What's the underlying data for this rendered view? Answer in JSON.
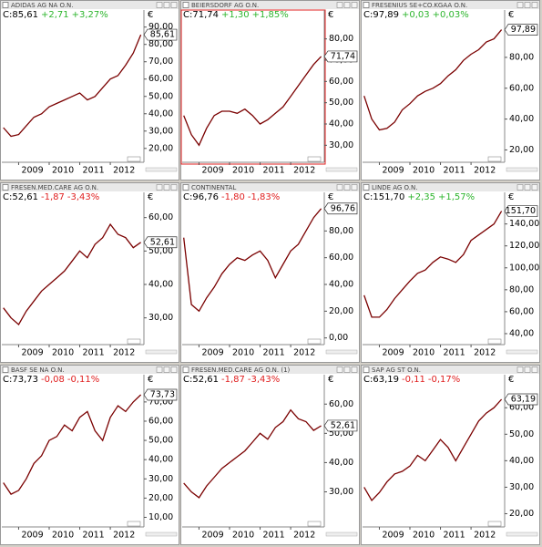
{
  "chart_data": [
    {
      "type": "line",
      "title": "ADIDAS AG NA O.N.",
      "close_label": "C:85,61",
      "change": "+2,71",
      "change_pct": "+3,27%",
      "change_color": "#2db52d",
      "last_label": "85,61",
      "currency": "€",
      "selected": false,
      "x": [
        2008.5,
        2008.75,
        2009,
        2009.25,
        2009.5,
        2009.75,
        2010,
        2010.25,
        2010.5,
        2010.75,
        2011,
        2011.25,
        2011.5,
        2011.75,
        2012,
        2012.25,
        2012.5,
        2012.75,
        2013
      ],
      "values": [
        32,
        27,
        28,
        33,
        38,
        40,
        44,
        46,
        48,
        50,
        52,
        48,
        50,
        55,
        60,
        62,
        68,
        75,
        85.61
      ],
      "color": "#7a0000",
      "xlim": [
        2008.45,
        2013.1
      ],
      "xticks": [
        2009,
        2010,
        2011,
        2012
      ],
      "ylim": [
        12,
        93
      ],
      "yticks": [
        {
          "value": 20,
          "label": "20,00"
        },
        {
          "value": 30,
          "label": "30,00"
        },
        {
          "value": 40,
          "label": "40,00"
        },
        {
          "value": 50,
          "label": "50,00"
        },
        {
          "value": 60,
          "label": "60,00"
        },
        {
          "value": 70,
          "label": "70,00"
        },
        {
          "value": 80,
          "label": "80,00"
        },
        {
          "value": 90,
          "label": "90,00"
        }
      ]
    },
    {
      "type": "line",
      "title": "BEIERSDORF AG O.N.",
      "close_label": "C:71,74",
      "change": "+1,30",
      "change_pct": "+1,85%",
      "change_color": "#2db52d",
      "last_label": "71,74",
      "currency": "€",
      "selected": true,
      "x": [
        2008.5,
        2008.75,
        2009,
        2009.25,
        2009.5,
        2009.75,
        2010,
        2010.25,
        2010.5,
        2010.75,
        2011,
        2011.25,
        2011.5,
        2011.75,
        2012,
        2012.25,
        2012.5,
        2012.75,
        2013
      ],
      "values": [
        44,
        35,
        30,
        38,
        44,
        46,
        46,
        45,
        47,
        44,
        40,
        42,
        45,
        48,
        53,
        58,
        63,
        68,
        71.74
      ],
      "color": "#7a0000",
      "xlim": [
        2008.45,
        2013.1
      ],
      "xticks": [
        2009,
        2010,
        2011,
        2012
      ],
      "ylim": [
        22,
        88
      ],
      "yticks": [
        {
          "value": 30,
          "label": "30,00"
        },
        {
          "value": 40,
          "label": "40,00"
        },
        {
          "value": 50,
          "label": "50,00"
        },
        {
          "value": 60,
          "label": "60,00"
        },
        {
          "value": 70,
          "label": "70,00"
        },
        {
          "value": 80,
          "label": "80,00"
        }
      ]
    },
    {
      "type": "line",
      "title": "FRESENIUS SE+CO.KGAA O.N.",
      "close_label": "C:97,89",
      "change": "+0,03",
      "change_pct": "+0,03%",
      "change_color": "#2db52d",
      "last_label": "97,89",
      "currency": "€",
      "selected": false,
      "x": [
        2008.5,
        2008.75,
        2009,
        2009.25,
        2009.5,
        2009.75,
        2010,
        2010.25,
        2010.5,
        2010.75,
        2011,
        2011.25,
        2011.5,
        2011.75,
        2012,
        2012.25,
        2012.5,
        2012.75,
        2013
      ],
      "values": [
        55,
        40,
        33,
        34,
        38,
        46,
        50,
        55,
        58,
        60,
        63,
        68,
        72,
        78,
        82,
        85,
        90,
        92,
        97.89
      ],
      "color": "#7a0000",
      "xlim": [
        2008.45,
        2013.1
      ],
      "xticks": [
        2009,
        2010,
        2011,
        2012
      ],
      "ylim": [
        12,
        103
      ],
      "yticks": [
        {
          "value": 20,
          "label": "20,00"
        },
        {
          "value": 40,
          "label": "40,00"
        },
        {
          "value": 60,
          "label": "60,00"
        },
        {
          "value": 80,
          "label": "80,00"
        }
      ]
    },
    {
      "type": "line",
      "title": "FRESEN.MED.CARE AG O.N.",
      "close_label": "C:52,61",
      "change": "-1,87",
      "change_pct": "-3,43%",
      "change_color": "#e02020",
      "last_label": "52,61",
      "currency": "€",
      "selected": false,
      "x": [
        2008.5,
        2008.75,
        2009,
        2009.25,
        2009.5,
        2009.75,
        2010,
        2010.25,
        2010.5,
        2010.75,
        2011,
        2011.25,
        2011.5,
        2011.75,
        2012,
        2012.25,
        2012.5,
        2012.75,
        2013
      ],
      "values": [
        33,
        30,
        28,
        32,
        35,
        38,
        40,
        42,
        44,
        47,
        50,
        48,
        52,
        54,
        58,
        55,
        54,
        51,
        52.61
      ],
      "color": "#7a0000",
      "xlim": [
        2008.45,
        2013.1
      ],
      "xticks": [
        2009,
        2010,
        2011,
        2012
      ],
      "ylim": [
        22,
        64
      ],
      "yticks": [
        {
          "value": 30,
          "label": "30,00"
        },
        {
          "value": 40,
          "label": "40,00"
        },
        {
          "value": 50,
          "label": "50,00"
        },
        {
          "value": 60,
          "label": "60,00"
        }
      ]
    },
    {
      "type": "line",
      "title": "CONTINENTAL",
      "close_label": "C:96,76",
      "change": "-1,80",
      "change_pct": "-1,83%",
      "change_color": "#e02020",
      "last_label": "96,76",
      "currency": "€",
      "selected": false,
      "x": [
        2008.5,
        2008.75,
        2009,
        2009.25,
        2009.5,
        2009.75,
        2010,
        2010.25,
        2010.5,
        2010.75,
        2011,
        2011.25,
        2011.5,
        2011.75,
        2012,
        2012.25,
        2012.5,
        2012.75,
        2013
      ],
      "values": [
        75,
        25,
        20,
        30,
        38,
        48,
        55,
        60,
        58,
        62,
        65,
        58,
        45,
        55,
        65,
        70,
        80,
        90,
        96.76
      ],
      "color": "#7a0000",
      "xlim": [
        2008.45,
        2013.1
      ],
      "xticks": [
        2009,
        2010,
        2011,
        2012
      ],
      "ylim": [
        -5,
        100
      ],
      "yticks": [
        {
          "value": 0,
          "label": "0,00"
        },
        {
          "value": 20,
          "label": "20,00"
        },
        {
          "value": 40,
          "label": "40,00"
        },
        {
          "value": 60,
          "label": "60,00"
        },
        {
          "value": 80,
          "label": "80,00"
        }
      ]
    },
    {
      "type": "line",
      "title": "LINDE AG O.N.",
      "close_label": "C:151,70",
      "change": "+2,35",
      "change_pct": "+1,57%",
      "change_color": "#2db52d",
      "last_label": "151,70",
      "currency": "€",
      "selected": false,
      "x": [
        2008.5,
        2008.75,
        2009,
        2009.25,
        2009.5,
        2009.75,
        2010,
        2010.25,
        2010.5,
        2010.75,
        2011,
        2011.25,
        2011.5,
        2011.75,
        2012,
        2012.25,
        2012.5,
        2012.75,
        2013
      ],
      "values": [
        75,
        55,
        55,
        62,
        72,
        80,
        88,
        95,
        98,
        105,
        110,
        108,
        105,
        112,
        125,
        130,
        135,
        140,
        151.7
      ],
      "color": "#7a0000",
      "xlim": [
        2008.45,
        2013.1
      ],
      "xticks": [
        2009,
        2010,
        2011,
        2012
      ],
      "ylim": [
        30,
        158
      ],
      "yticks": [
        {
          "value": 40,
          "label": "40,00"
        },
        {
          "value": 60,
          "label": "60,00"
        },
        {
          "value": 80,
          "label": "80,00"
        },
        {
          "value": 100,
          "label": "100,00"
        },
        {
          "value": 120,
          "label": "120,00"
        },
        {
          "value": 140,
          "label": "140,00"
        }
      ]
    },
    {
      "type": "line",
      "title": "BASF SE NA O.N.",
      "close_label": "C:73,73",
      "change": "-0,08",
      "change_pct": "-0,11%",
      "change_color": "#e02020",
      "last_label": "73,73",
      "currency": "€",
      "selected": false,
      "x": [
        2008.5,
        2008.75,
        2009,
        2009.25,
        2009.5,
        2009.75,
        2010,
        2010.25,
        2010.5,
        2010.75,
        2011,
        2011.25,
        2011.5,
        2011.75,
        2012,
        2012.25,
        2012.5,
        2012.75,
        2013
      ],
      "values": [
        28,
        22,
        24,
        30,
        38,
        42,
        50,
        52,
        58,
        55,
        62,
        65,
        55,
        50,
        62,
        68,
        65,
        70,
        73.73
      ],
      "color": "#7a0000",
      "xlim": [
        2008.45,
        2013.1
      ],
      "xticks": [
        2009,
        2010,
        2011,
        2012
      ],
      "ylim": [
        5,
        78
      ],
      "yticks": [
        {
          "value": 10,
          "label": "10,00"
        },
        {
          "value": 20,
          "label": "20,00"
        },
        {
          "value": 30,
          "label": "30,00"
        },
        {
          "value": 40,
          "label": "40,00"
        },
        {
          "value": 50,
          "label": "50,00"
        },
        {
          "value": 60,
          "label": "60,00"
        },
        {
          "value": 70,
          "label": "70,00"
        }
      ]
    },
    {
      "type": "line",
      "title": "FRESEN.MED.CARE AG O.N. (1)",
      "close_label": "C:52,61",
      "change": "-1,87",
      "change_pct": "-3,43%",
      "change_color": "#e02020",
      "last_label": "52,61",
      "currency": "€",
      "selected": false,
      "x": [
        2008.5,
        2008.75,
        2009,
        2009.25,
        2009.5,
        2009.75,
        2010,
        2010.25,
        2010.5,
        2010.75,
        2011,
        2011.25,
        2011.5,
        2011.75,
        2012,
        2012.25,
        2012.5,
        2012.75,
        2013
      ],
      "values": [
        33,
        30,
        28,
        32,
        35,
        38,
        40,
        42,
        44,
        47,
        50,
        48,
        52,
        54,
        58,
        55,
        54,
        51,
        52.61
      ],
      "color": "#7a0000",
      "xlim": [
        2008.45,
        2013.1
      ],
      "xticks": [
        2009,
        2010,
        2011,
        2012
      ],
      "ylim": [
        18,
        66
      ],
      "yticks": [
        {
          "value": 30,
          "label": "30,00"
        },
        {
          "value": 40,
          "label": "40,00"
        },
        {
          "value": 50,
          "label": "50,00"
        },
        {
          "value": 60,
          "label": "60,00"
        }
      ]
    },
    {
      "type": "line",
      "title": "SAP AG ST O.N.",
      "close_label": "C:63,19",
      "change": "-0,11",
      "change_pct": "-0,17%",
      "change_color": "#e02020",
      "last_label": "63,19",
      "currency": "€",
      "selected": false,
      "x": [
        2008.5,
        2008.75,
        2009,
        2009.25,
        2009.5,
        2009.75,
        2010,
        2010.25,
        2010.5,
        2010.75,
        2011,
        2011.25,
        2011.5,
        2011.75,
        2012,
        2012.25,
        2012.5,
        2012.75,
        2013
      ],
      "values": [
        30,
        25,
        28,
        32,
        35,
        36,
        38,
        42,
        40,
        44,
        48,
        45,
        40,
        45,
        50,
        55,
        58,
        60,
        63.19
      ],
      "color": "#7a0000",
      "xlim": [
        2008.45,
        2013.1
      ],
      "xticks": [
        2009,
        2010,
        2011,
        2012
      ],
      "ylim": [
        15,
        68
      ],
      "yticks": [
        {
          "value": 20,
          "label": "20,00"
        },
        {
          "value": 30,
          "label": "30,00"
        },
        {
          "value": 40,
          "label": "40,00"
        },
        {
          "value": 50,
          "label": "50,00"
        },
        {
          "value": 60,
          "label": "60,00"
        }
      ]
    }
  ]
}
